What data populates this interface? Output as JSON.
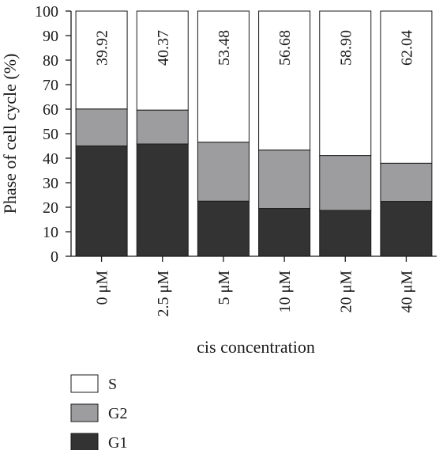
{
  "chart_data": {
    "type": "bar",
    "stacked": true,
    "title": "",
    "xlabel": "cis concentration",
    "ylabel": "Phase of cell cycle (%)",
    "ylim": [
      0,
      100
    ],
    "yticks": [
      "0",
      "10",
      "20",
      "30",
      "40",
      "50",
      "60",
      "70",
      "80",
      "90",
      "100"
    ],
    "categories": [
      "0 μM",
      "2.5 μM",
      "5 μM",
      "10 μM",
      "20 μM",
      "40 μM"
    ],
    "series": [
      {
        "name": "G1",
        "color": "#333333",
        "values": [
          45.0,
          45.8,
          22.5,
          19.5,
          18.7,
          22.4
        ]
      },
      {
        "name": "G2",
        "color": "#9d9d9f",
        "values": [
          15.08,
          13.83,
          24.02,
          23.82,
          22.4,
          15.56
        ]
      },
      {
        "name": "S",
        "color": "#ffffff",
        "values": [
          39.92,
          40.37,
          53.48,
          56.68,
          58.9,
          62.04
        ]
      }
    ],
    "data_labels": [
      "39.92",
      "40.37",
      "53.48",
      "56.68",
      "58.90",
      "62.04"
    ],
    "legend": {
      "placement": "bottom-left",
      "entries": [
        "S",
        "G2",
        "G1"
      ]
    },
    "grid": false
  }
}
